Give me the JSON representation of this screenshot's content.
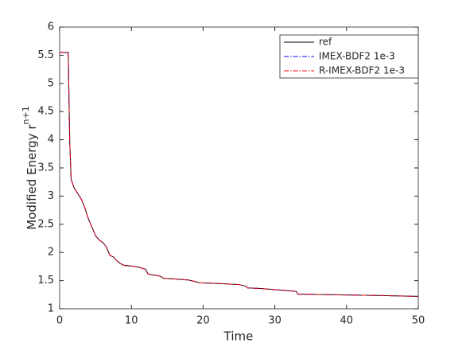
{
  "chart_data": {
    "type": "line",
    "xlabel": "Time",
    "ylabel": {
      "text": "Modified Energy  r",
      "superscript": "n+1"
    },
    "x": [
      0,
      1.2,
      1.4,
      1.6,
      2,
      2.5,
      3,
      3.5,
      4,
      4.5,
      5,
      5.5,
      6,
      6.5,
      7,
      7.5,
      8,
      8.5,
      9,
      10,
      11,
      12,
      12.3,
      13,
      14,
      14.5,
      16,
      18,
      19,
      19.5,
      22,
      25,
      26,
      26.2,
      28,
      30,
      32,
      33,
      33.2,
      36,
      40,
      45,
      50
    ],
    "series": [
      {
        "name": "ref",
        "color": "#000000",
        "linestyle": "solid",
        "values": [
          5.55,
          5.55,
          4.0,
          3.3,
          3.15,
          3.05,
          2.95,
          2.8,
          2.6,
          2.45,
          2.3,
          2.22,
          2.18,
          2.1,
          1.95,
          1.92,
          1.85,
          1.8,
          1.77,
          1.76,
          1.74,
          1.7,
          1.62,
          1.6,
          1.58,
          1.54,
          1.53,
          1.51,
          1.48,
          1.46,
          1.45,
          1.43,
          1.4,
          1.37,
          1.36,
          1.34,
          1.32,
          1.31,
          1.26,
          1.255,
          1.245,
          1.235,
          1.22
        ]
      },
      {
        "name": "IMEX-BDF2 1e-3",
        "color": "#0000ff",
        "linestyle": "dashdot",
        "values": [
          5.55,
          5.55,
          4.0,
          3.3,
          3.15,
          3.05,
          2.95,
          2.8,
          2.6,
          2.45,
          2.3,
          2.22,
          2.18,
          2.1,
          1.95,
          1.92,
          1.85,
          1.8,
          1.77,
          1.76,
          1.74,
          1.7,
          1.62,
          1.6,
          1.58,
          1.54,
          1.53,
          1.51,
          1.48,
          1.46,
          1.45,
          1.43,
          1.4,
          1.37,
          1.36,
          1.34,
          1.32,
          1.31,
          1.26,
          1.255,
          1.245,
          1.235,
          1.22
        ]
      },
      {
        "name": "R-IMEX-BDF2 1e-3",
        "color": "#ff0000",
        "linestyle": "dashdot",
        "values": [
          5.55,
          5.55,
          4.0,
          3.3,
          3.15,
          3.05,
          2.95,
          2.8,
          2.6,
          2.45,
          2.3,
          2.22,
          2.18,
          2.1,
          1.95,
          1.92,
          1.85,
          1.8,
          1.77,
          1.76,
          1.74,
          1.7,
          1.62,
          1.6,
          1.58,
          1.54,
          1.53,
          1.51,
          1.48,
          1.46,
          1.45,
          1.43,
          1.4,
          1.37,
          1.36,
          1.34,
          1.32,
          1.31,
          1.26,
          1.255,
          1.245,
          1.235,
          1.22
        ]
      }
    ],
    "xlim": [
      0,
      50
    ],
    "xticks": [
      0,
      10,
      20,
      30,
      40,
      50
    ],
    "ylim": [
      1,
      6
    ],
    "yticks": [
      1,
      1.5,
      2,
      2.5,
      3,
      3.5,
      4,
      4.5,
      5,
      5.5,
      6
    ],
    "grid": false,
    "legend": "northeast"
  }
}
